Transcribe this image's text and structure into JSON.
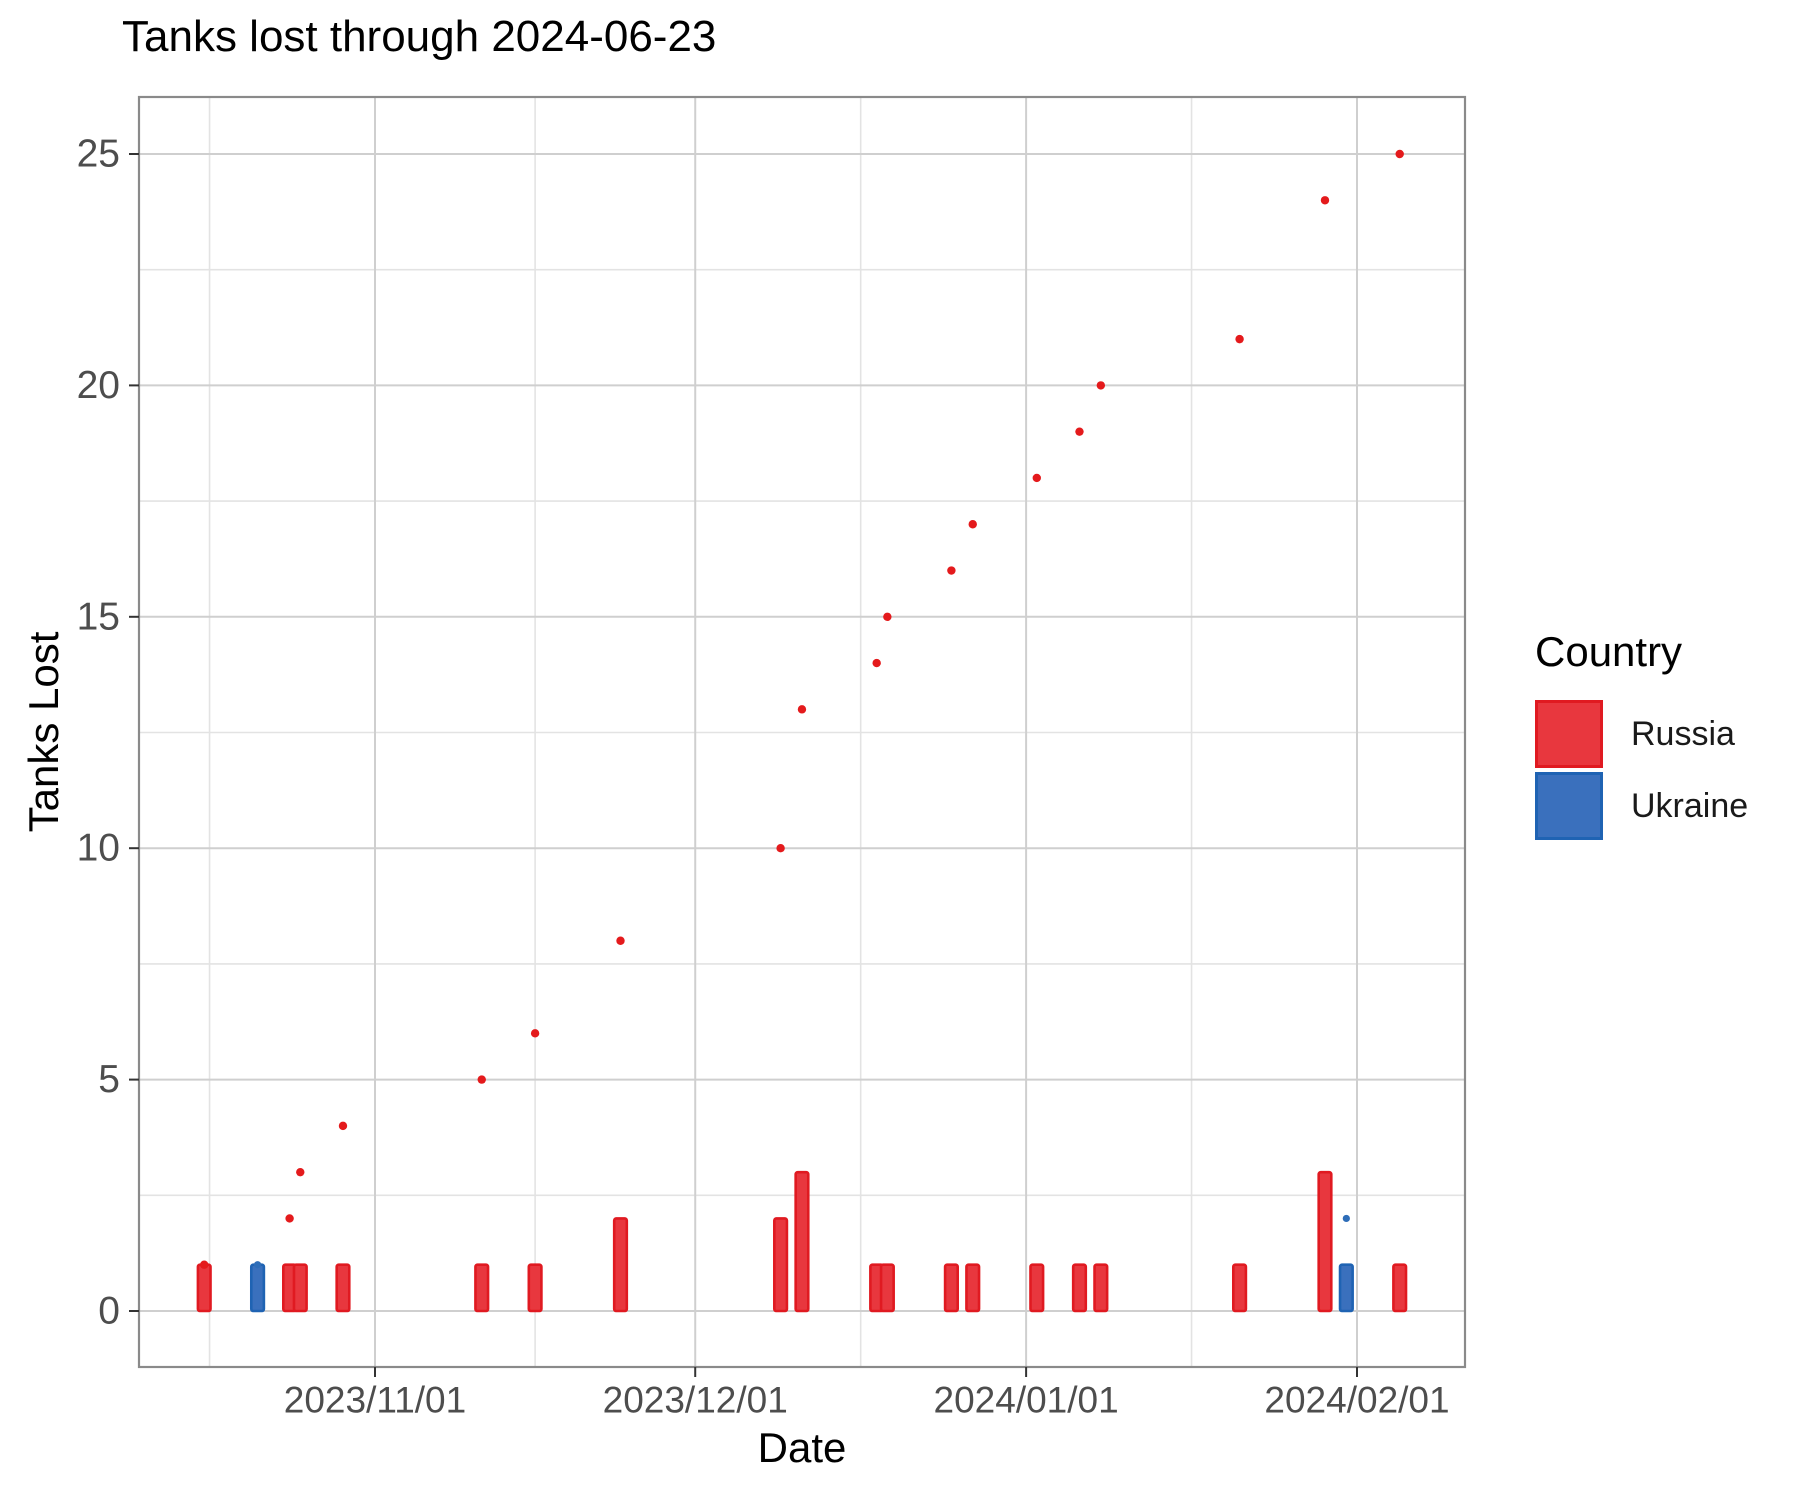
{
  "title": "Tanks lost through 2024-06-23",
  "x_axis": {
    "label": "Date",
    "major_ticks": [
      {
        "date": "2023-11-01",
        "label": "2023/11/01"
      },
      {
        "date": "2023-12-01",
        "label": "2023/12/01"
      },
      {
        "date": "2024-01-01",
        "label": "2024/01/01"
      },
      {
        "date": "2024-02-01",
        "label": "2024/02/01"
      }
    ]
  },
  "y_axis": {
    "label": "Tanks Lost",
    "ticks": [
      0,
      5,
      10,
      15,
      20,
      25
    ],
    "minor_ticks": [
      2.5,
      7.5,
      12.5,
      17.5,
      22.5
    ]
  },
  "legend": {
    "title": "Country",
    "items": [
      {
        "label": "Russia",
        "fill": "#e8373e",
        "stroke": "#e01a21"
      },
      {
        "label": "Ukraine",
        "fill": "#3a70bd",
        "stroke": "#1f63b3"
      }
    ]
  },
  "colors": {
    "grid_major": "#cfcfcf",
    "grid_minor": "#e3e3e3",
    "panel_border": "#8a8a8a",
    "tick_mark": "#333333",
    "tick_label": "#4d4d4d"
  },
  "chart_data": {
    "type": "bar",
    "title": "Tanks lost through 2024-06-23",
    "xlabel": "Date",
    "ylabel": "Tanks Lost",
    "ylim": [
      0,
      25
    ],
    "x_range_dates": [
      "2023-10-10",
      "2024-02-11"
    ],
    "grid": "major+minor",
    "legend_position": "right",
    "series": [
      {
        "name": "Russia",
        "kind": "daily_loss_bars",
        "fill": "#e8373e",
        "stroke": "#e01a21",
        "points": [
          [
            "2023-10-16",
            1
          ],
          [
            "2023-10-24",
            1
          ],
          [
            "2023-10-25",
            1
          ],
          [
            "2023-10-29",
            1
          ],
          [
            "2023-11-11",
            1
          ],
          [
            "2023-11-16",
            1
          ],
          [
            "2023-11-24",
            2
          ],
          [
            "2023-12-09",
            2
          ],
          [
            "2023-12-11",
            3
          ],
          [
            "2023-12-18",
            1
          ],
          [
            "2023-12-19",
            1
          ],
          [
            "2023-12-25",
            1
          ],
          [
            "2023-12-27",
            1
          ],
          [
            "2024-01-02",
            1
          ],
          [
            "2024-01-06",
            1
          ],
          [
            "2024-01-08",
            1
          ],
          [
            "2024-01-21",
            1
          ],
          [
            "2024-01-29",
            3
          ],
          [
            "2024-02-05",
            1
          ]
        ]
      },
      {
        "name": "Ukraine",
        "kind": "daily_loss_bars",
        "fill": "#3a70bd",
        "stroke": "#1f63b3",
        "points": [
          [
            "2023-10-21",
            1
          ],
          [
            "2024-01-31",
            1
          ]
        ]
      },
      {
        "name": "Russia cumulative",
        "kind": "cumulative_dots",
        "color": "#e41a1c",
        "points": [
          [
            "2023-10-16",
            1
          ],
          [
            "2023-10-24",
            2
          ],
          [
            "2023-10-25",
            3
          ],
          [
            "2023-10-29",
            4
          ],
          [
            "2023-11-11",
            5
          ],
          [
            "2023-11-16",
            6
          ],
          [
            "2023-11-24",
            8
          ],
          [
            "2023-12-09",
            10
          ],
          [
            "2023-12-11",
            13
          ],
          [
            "2023-12-18",
            14
          ],
          [
            "2023-12-19",
            15
          ],
          [
            "2023-12-25",
            16
          ],
          [
            "2023-12-27",
            17
          ],
          [
            "2024-01-02",
            18
          ],
          [
            "2024-01-06",
            19
          ],
          [
            "2024-01-08",
            20
          ],
          [
            "2024-01-21",
            21
          ],
          [
            "2024-01-29",
            24
          ],
          [
            "2024-02-05",
            25
          ]
        ]
      },
      {
        "name": "Ukraine cumulative",
        "kind": "cumulative_dots",
        "color": "#2e6db8",
        "points": [
          [
            "2023-10-21",
            1
          ],
          [
            "2024-01-31",
            2
          ]
        ]
      }
    ]
  }
}
